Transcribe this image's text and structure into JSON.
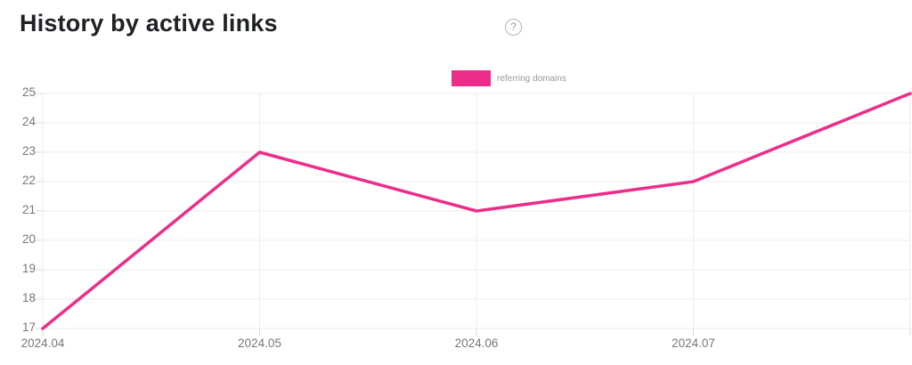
{
  "header": {
    "title": "History by active links",
    "help_icon": "?"
  },
  "colors": {
    "series_pink": "#ec2e8a",
    "gridline": "#ececec",
    "tick": "#d9d9d9",
    "axis_label": "#77777b"
  },
  "chart_data": {
    "type": "line",
    "title": "History by active links",
    "categories": [
      "2024.04",
      "2024.05",
      "2024.06",
      "2024.07",
      ""
    ],
    "xticks": [
      "2024.04",
      "2024.05",
      "2024.06",
      "2024.07"
    ],
    "yticks": [
      17,
      18,
      19,
      20,
      21,
      22,
      23,
      24,
      25
    ],
    "ylim": [
      17,
      25
    ],
    "grid": true,
    "legend_position": "top-center",
    "series": [
      {
        "name": "referring domains",
        "color": "#ec2e8a",
        "values": [
          17,
          23,
          21,
          22,
          25
        ]
      }
    ]
  }
}
